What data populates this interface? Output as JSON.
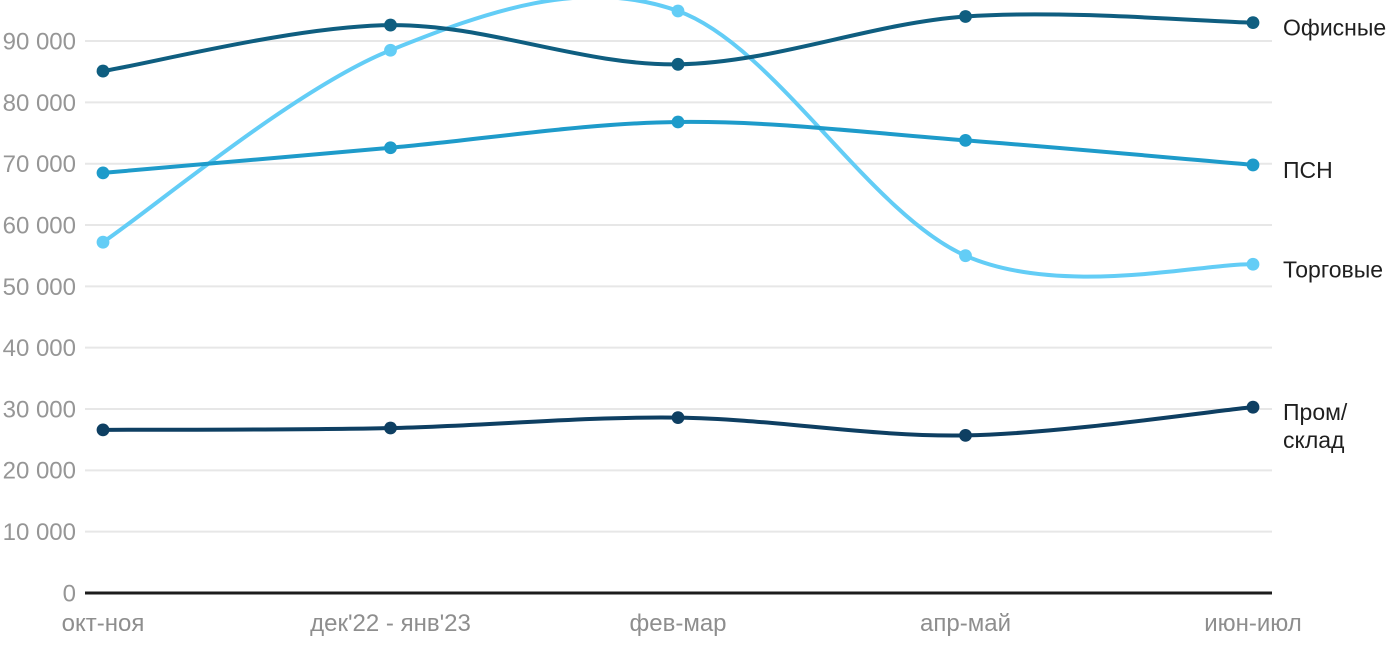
{
  "chart_data": {
    "type": "line",
    "title": "",
    "xlabel": "",
    "ylabel": "",
    "x_categories": [
      "окт-ноя",
      "дек'22 - янв'23",
      "фев-мар",
      "апр-май",
      "июн-июл"
    ],
    "series": [
      {
        "key": "retail",
        "name": "Торговые",
        "label_lines": [
          "Торговые"
        ],
        "color": "#63cdf6",
        "values": [
          57200,
          88500,
          94900,
          55000,
          53600
        ]
      },
      {
        "key": "psn",
        "name": "ПСН",
        "label_lines": [
          "ПСН"
        ],
        "color": "#1e9bca",
        "values": [
          68500,
          72600,
          76800,
          73800,
          69800
        ]
      },
      {
        "key": "offices",
        "name": "Офисные",
        "label_lines": [
          "Офисные"
        ],
        "color": "#0f5e80",
        "values": [
          85100,
          92600,
          86200,
          94000,
          93000
        ]
      },
      {
        "key": "industrial",
        "name": "Пром/склад",
        "label_lines": [
          "Пром/",
          "склад"
        ],
        "color": "#0e3f62",
        "values": [
          26600,
          26900,
          28600,
          25700,
          30300
        ]
      }
    ],
    "y_axis": {
      "min": 0,
      "max": 96700,
      "tick_step": 10000,
      "tick_labels": [
        "0",
        "10 000",
        "20 000",
        "30 000",
        "40 000",
        "50 000",
        "60 000",
        "70 000",
        "80 000",
        "90 000"
      ]
    },
    "ylim": [
      0,
      96700
    ],
    "grid": "horizontal",
    "legend_position": "right-of-lines",
    "colors": {
      "gridline": "#e7e7e7",
      "axis_line": "#1c1c1c",
      "y_tick_text": "#969696",
      "x_tick_text": "#8e8e8e",
      "series_label_text": "#1f1f1f",
      "background": "#ffffff"
    }
  }
}
